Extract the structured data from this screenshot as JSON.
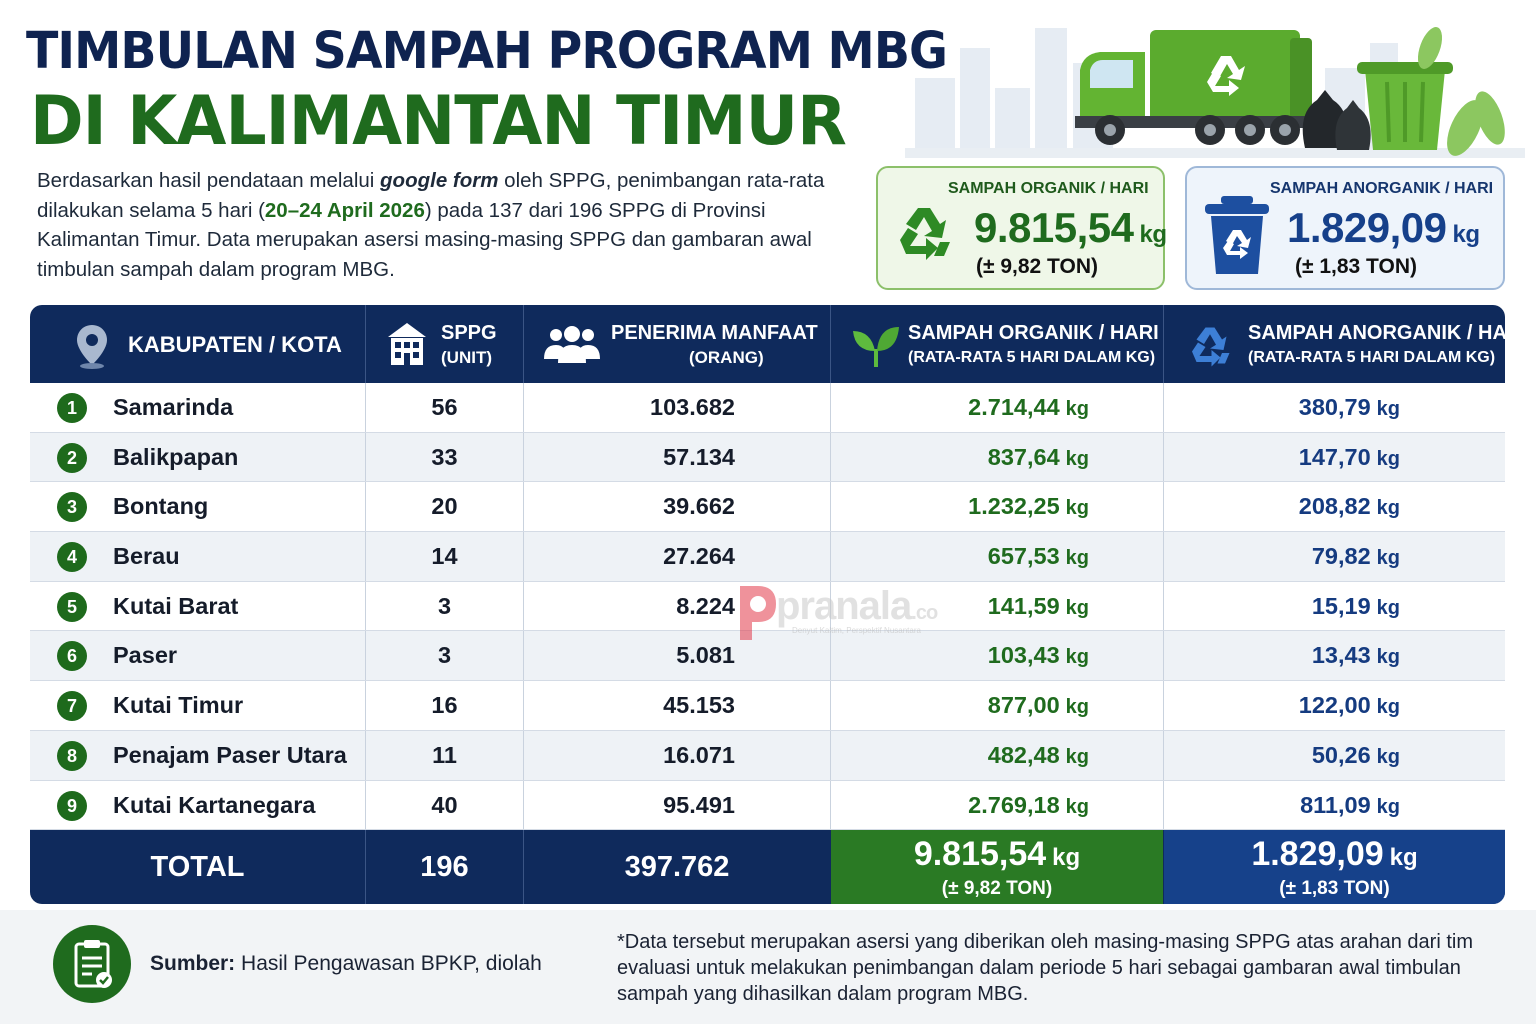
{
  "header": {
    "title_line1": "TIMBULAN SAMPAH PROGRAM MBG",
    "title_line2": "DI KALIMANTAN TIMUR",
    "intro_part1": "Berdasarkan hasil pendataan melalui ",
    "intro_em": "google form",
    "intro_part2": " oleh SPPG, penimbangan rata-rata dilakukan selama 5 hari (",
    "intro_dates": "20–24 April 2026",
    "intro_part3": ") pada 137 dari 196 SPPG di Provinsi Kalimantan Timur. Data merupakan asersi masing-masing SPPG dan gambaran awal timbulan sampah dalam program MBG."
  },
  "cards": {
    "organic": {
      "title": "SAMPAH ORGANIK / HARI",
      "value": "9.815,54",
      "unit": "kg",
      "sub": "(± 9,82 TON)"
    },
    "inorganic": {
      "title": "SAMPAH ANORGANIK / HARI",
      "value": "1.829,09",
      "unit": "kg",
      "sub": "(± 1,83 TON)"
    }
  },
  "table": {
    "headers": {
      "region": "KABUPATEN / KOTA",
      "sppg_l1": "SPPG",
      "sppg_l2": "(UNIT)",
      "pen_l1": "PENERIMA MANFAAT",
      "pen_l2": "(ORANG)",
      "org_l1": "SAMPAH ORGANIK / HARI",
      "org_l2": "(RATA-RATA 5 HARI DALAM KG)",
      "anorg_l1": "SAMPAH ANORGANIK / HARI",
      "anorg_l2": "(RATA-RATA 5 HARI DALAM KG)"
    },
    "unit": "kg",
    "rows": [
      {
        "no": "1",
        "name": "Samarinda",
        "sppg": "56",
        "penerima": "103.682",
        "organik": "2.714,44",
        "anorganik": "380,79"
      },
      {
        "no": "2",
        "name": "Balikpapan",
        "sppg": "33",
        "penerima": "57.134",
        "organik": "837,64",
        "anorganik": "147,70"
      },
      {
        "no": "3",
        "name": "Bontang",
        "sppg": "20",
        "penerima": "39.662",
        "organik": "1.232,25",
        "anorganik": "208,82"
      },
      {
        "no": "4",
        "name": "Berau",
        "sppg": "14",
        "penerima": "27.264",
        "organik": "657,53",
        "anorganik": "79,82"
      },
      {
        "no": "5",
        "name": "Kutai Barat",
        "sppg": "3",
        "penerima": "8.224",
        "organik": "141,59",
        "anorganik": "15,19"
      },
      {
        "no": "6",
        "name": "Paser",
        "sppg": "3",
        "penerima": "5.081",
        "organik": "103,43",
        "anorganik": "13,43"
      },
      {
        "no": "7",
        "name": "Kutai Timur",
        "sppg": "16",
        "penerima": "45.153",
        "organik": "877,00",
        "anorganik": "122,00"
      },
      {
        "no": "8",
        "name": "Penajam Paser Utara",
        "sppg": "11",
        "penerima": "16.071",
        "organik": "482,48",
        "anorganik": "50,26"
      },
      {
        "no": "9",
        "name": "Kutai Kartanegara",
        "sppg": "40",
        "penerima": "95.491",
        "organik": "2.769,18",
        "anorganik": "811,09"
      }
    ],
    "total": {
      "label": "TOTAL",
      "sppg": "196",
      "penerima": "397.762",
      "organik": "9.815,54",
      "organik_sub": "(± 9,82 TON)",
      "anorganik": "1.829,09",
      "anorganik_sub": "(± 1,83 TON)"
    }
  },
  "watermark": {
    "brand": "pranala",
    "suffix": ".co",
    "tagline": "Denyut Kaltim, Perspektif Nusantara"
  },
  "footer": {
    "source_label": "Sumber:",
    "source_text": " Hasil Pengawasan BPKP, diolah",
    "note": "*Data tersebut merupakan asersi yang diberikan oleh masing-masing SPPG atas arahan dari tim evaluasi untuk melakukan penimbangan dalam periode 5 hari sebagai gambaran awal timbulan sampah yang dihasilkan dalam program MBG."
  },
  "colors": {
    "navy": "#0f2a5c",
    "green": "#1f6b1e",
    "blue": "#16408a"
  },
  "icons": [
    "location-pin-icon",
    "building-icon",
    "people-icon",
    "leaf-icon",
    "recycle-icon",
    "recycle-bin-icon",
    "clipboard-check-icon",
    "garbage-truck-illustration"
  ]
}
